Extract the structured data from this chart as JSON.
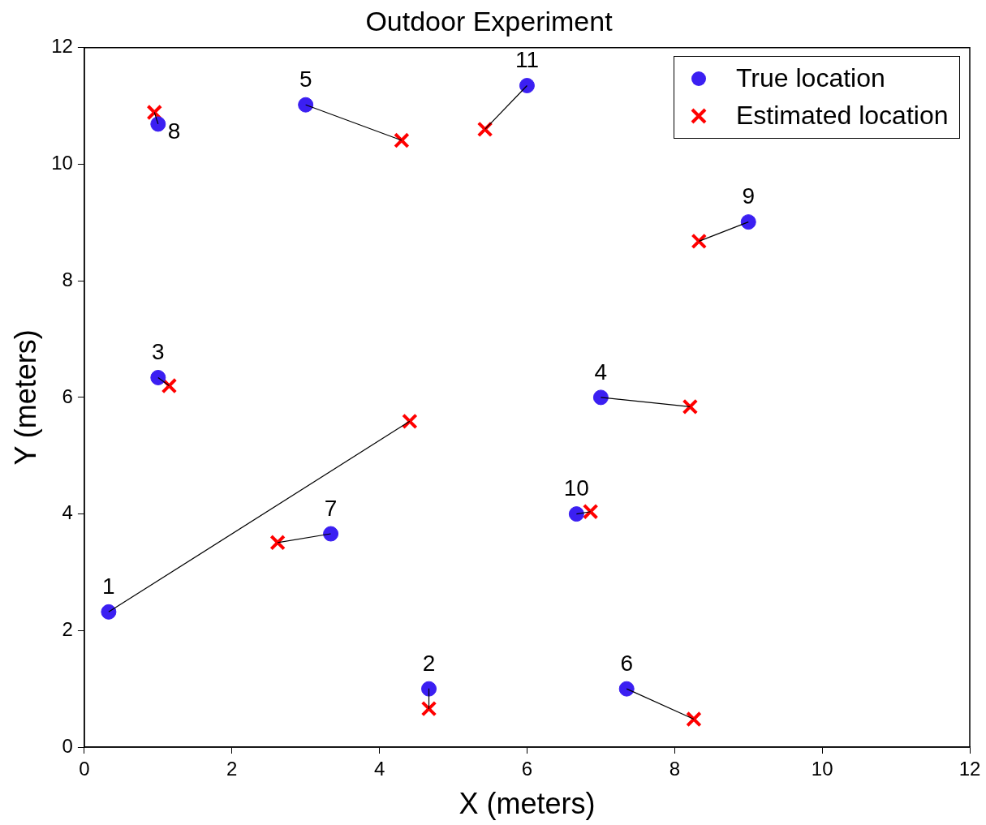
{
  "chart_data": {
    "type": "scatter",
    "title": "Outdoor Experiment",
    "xlabel": "X (meters)",
    "ylabel": "Y (meters)",
    "xlim": [
      0,
      12
    ],
    "xticks": [
      0,
      2,
      4,
      6,
      8,
      10,
      12
    ],
    "ylim": [
      0,
      12
    ],
    "yticks": [
      0,
      2,
      4,
      6,
      8,
      10,
      12
    ],
    "grid": false,
    "legend": "top right",
    "series": [
      {
        "type": "line",
        "color": "#000000",
        "marker": "none",
        "x": [
          0.33,
          4.41
        ],
        "values": [
          2.32,
          5.59
        ]
      },
      {
        "type": "line",
        "color": "#000000",
        "marker": "none",
        "x": [
          4.67,
          4.67
        ],
        "values": [
          1.0,
          0.66
        ]
      },
      {
        "type": "line",
        "color": "#000000",
        "marker": "none",
        "x": [
          1.0,
          1.15
        ],
        "values": [
          6.34,
          6.2
        ]
      },
      {
        "type": "line",
        "color": "#000000",
        "marker": "none",
        "x": [
          7.0,
          8.21
        ],
        "values": [
          6.0,
          5.84
        ]
      },
      {
        "type": "line",
        "color": "#000000",
        "marker": "none",
        "x": [
          3.0,
          4.3
        ],
        "values": [
          11.02,
          10.41
        ]
      },
      {
        "type": "line",
        "color": "#000000",
        "marker": "none",
        "x": [
          7.35,
          8.26
        ],
        "values": [
          1.0,
          0.48
        ]
      },
      {
        "type": "line",
        "color": "#000000",
        "marker": "none",
        "x": [
          3.34,
          2.62
        ],
        "values": [
          3.66,
          3.51
        ]
      },
      {
        "type": "line",
        "color": "#000000",
        "marker": "none",
        "x": [
          1.0,
          0.95
        ],
        "values": [
          10.69,
          10.89
        ]
      },
      {
        "type": "line",
        "color": "#000000",
        "marker": "none",
        "x": [
          9.0,
          8.33
        ],
        "values": [
          9.01,
          8.68
        ]
      },
      {
        "type": "line",
        "color": "#000000",
        "marker": "none",
        "x": [
          6.67,
          6.86
        ],
        "values": [
          4.0,
          4.04
        ]
      },
      {
        "type": "line",
        "color": "#000000",
        "marker": "none",
        "x": [
          6.0,
          5.43
        ],
        "values": [
          11.35,
          10.6
        ]
      },
      {
        "name": "True location",
        "color": "#3b1ff2",
        "marker": "circle",
        "x": [
          0.33,
          4.67,
          1.0,
          7.0,
          3.0,
          7.35,
          3.34,
          1.0,
          9.0,
          6.67,
          6.0
        ],
        "values": [
          2.32,
          1.0,
          6.34,
          6.0,
          11.02,
          1.0,
          3.66,
          10.69,
          9.01,
          4.0,
          11.35
        ]
      },
      {
        "name": "Estimated location",
        "color": "#ff0000",
        "marker": "cross",
        "x": [
          4.41,
          4.67,
          1.15,
          8.21,
          4.3,
          8.26,
          2.62,
          0.95,
          8.33,
          6.86,
          5.43
        ],
        "values": [
          5.59,
          0.66,
          6.2,
          5.84,
          10.41,
          0.48,
          3.51,
          10.89,
          8.68,
          4.04,
          10.6
        ]
      }
    ],
    "annotations": [
      {
        "text": "1",
        "x": 0.33,
        "y": 2.32
      },
      {
        "text": "2",
        "x": 4.67,
        "y": 1.0
      },
      {
        "text": "3",
        "x": 1.0,
        "y": 6.34
      },
      {
        "text": "4",
        "x": 7.0,
        "y": 6.0
      },
      {
        "text": "5",
        "x": 3.0,
        "y": 11.02
      },
      {
        "text": "6",
        "x": 7.35,
        "y": 1.0
      },
      {
        "text": "7",
        "x": 3.34,
        "y": 3.66
      },
      {
        "text": "8",
        "x": 1.0,
        "y": 10.69
      },
      {
        "text": "9",
        "x": 9.0,
        "y": 9.01
      },
      {
        "text": "10",
        "x": 6.67,
        "y": 4.0
      },
      {
        "text": "11",
        "x": 6.0,
        "y": 11.35
      }
    ]
  }
}
